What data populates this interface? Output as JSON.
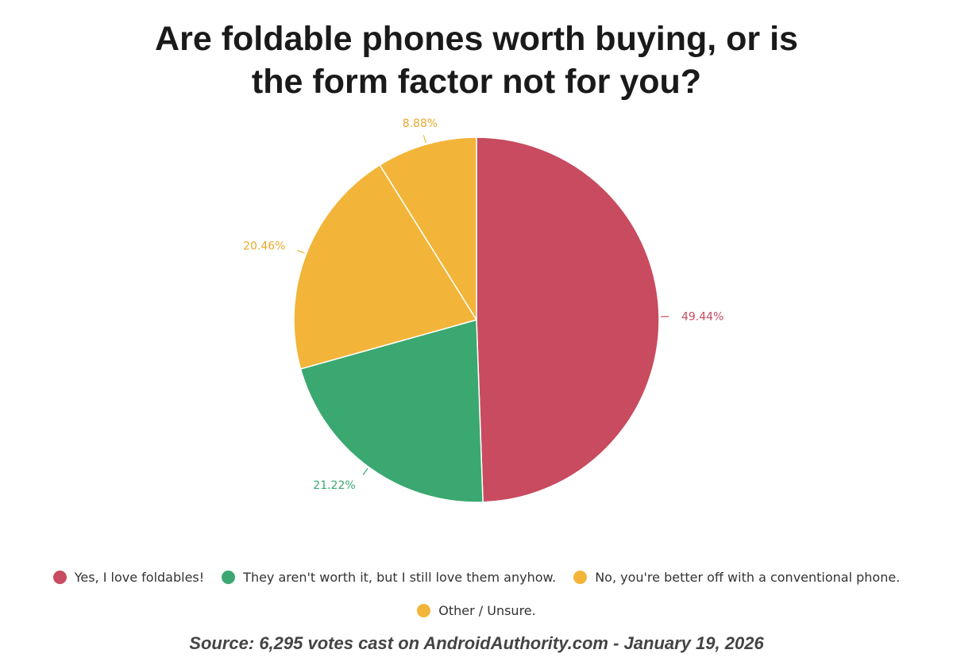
{
  "chart_data": {
    "type": "pie",
    "title": "Are foldable phones worth buying, or is\nthe form factor not for you?",
    "slices": [
      {
        "label": "Yes, I love foldables!",
        "value": 49.44,
        "value_label": "49.44%",
        "color": "#c84b5f"
      },
      {
        "label": "They aren't worth it, but I still love them anyhow.",
        "value": 21.22,
        "value_label": "21.22%",
        "color": "#3aa870"
      },
      {
        "label": "No, you're better off with a conventional phone.",
        "value": 20.46,
        "value_label": "20.46%",
        "color": "#f2b539"
      },
      {
        "label": "Other / Unsure.",
        "value": 8.88,
        "value_label": "8.88%",
        "color": "#f2b539"
      }
    ],
    "legend_position": "bottom",
    "start_angle": "12 o'clock",
    "direction": "clockwise"
  },
  "footer": {
    "source": "Source: 6,295 votes cast on AndroidAuthority.com - January 19, 2026"
  }
}
